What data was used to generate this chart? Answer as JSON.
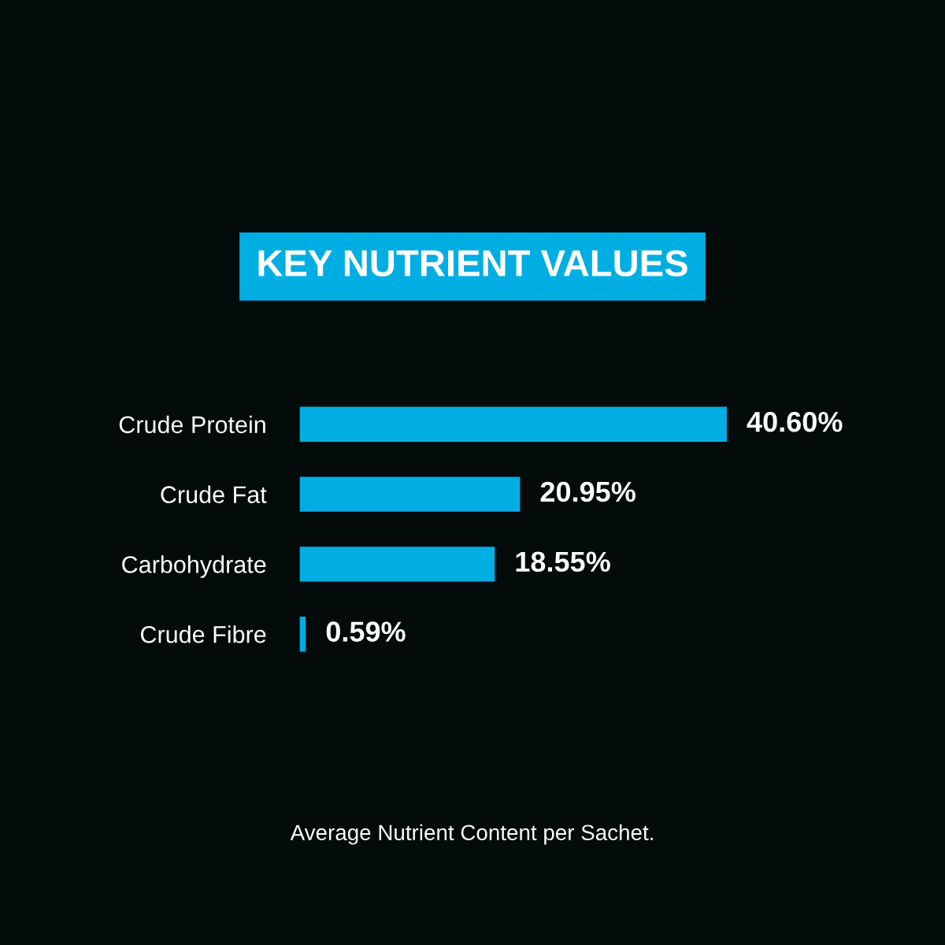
{
  "chart_data": {
    "type": "bar",
    "orientation": "horizontal",
    "title": "KEY NUTRIENT VALUES",
    "categories": [
      "Crude Protein",
      "Crude Fat",
      "Carbohydrate",
      "Crude Fibre"
    ],
    "values": [
      40.6,
      20.95,
      18.55,
      0.59
    ],
    "value_labels": [
      "40.60%",
      "20.95%",
      "18.55%",
      "0.59%"
    ],
    "color": "#00aee3",
    "annotations": [
      "Average Nutrient Content per Sachet."
    ],
    "grid": false,
    "legend": false
  }
}
